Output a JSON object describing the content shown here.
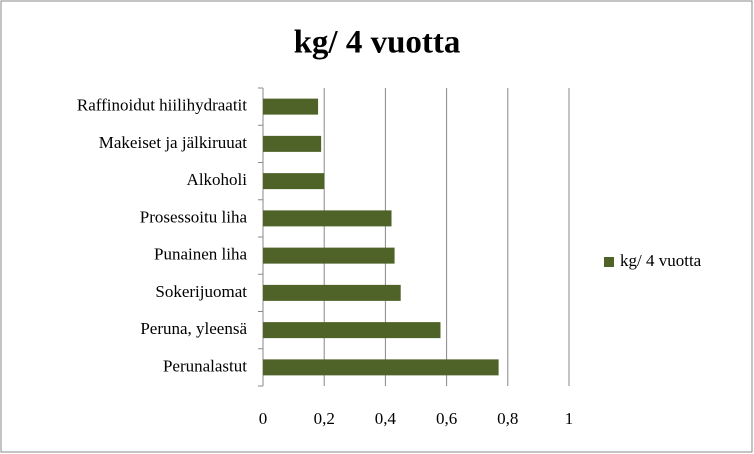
{
  "chart_data": {
    "type": "bar",
    "orientation": "horizontal",
    "title": "kg/ 4 vuotta",
    "categories": [
      "Raffinoidut hiilihydraatit",
      "Makeiset ja jälkiruuat",
      "Alkoholi",
      "Prosessoitu liha",
      "Punainen liha",
      "Sokerijuomat",
      "Peruna, yleensä",
      "Perunalastut"
    ],
    "series": [
      {
        "name": "kg/ 4 vuotta",
        "color": "#4f6228",
        "values": [
          0.18,
          0.19,
          0.2,
          0.42,
          0.43,
          0.45,
          0.58,
          0.77
        ]
      }
    ],
    "xlim": [
      0,
      1
    ],
    "xticks": [
      0,
      {
        "value": 0.2,
        "label": "0,2"
      },
      {
        "value": 0.4,
        "label": "0,4"
      },
      {
        "value": 0.6,
        "label": "0,6"
      },
      {
        "value": 0.8,
        "label": "0,8"
      },
      1
    ],
    "grid": true,
    "legend": "right"
  }
}
